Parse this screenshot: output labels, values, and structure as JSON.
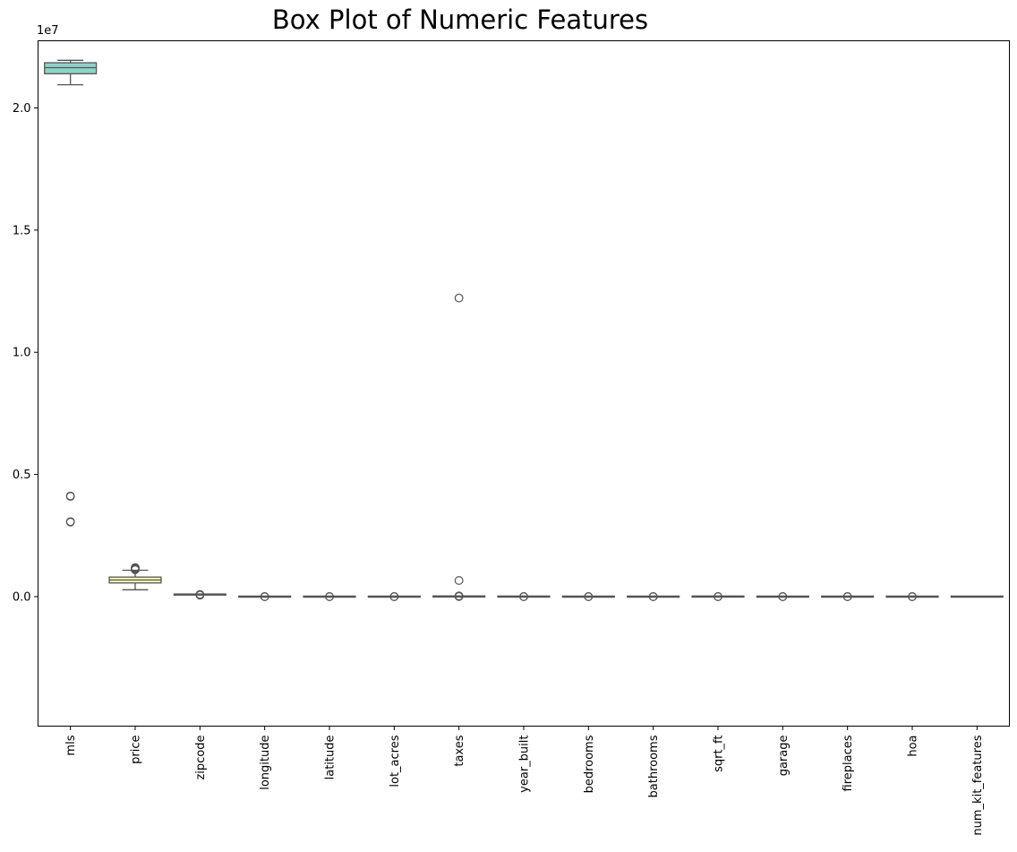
{
  "chart_data": {
    "type": "box",
    "title": "Box Plot of Numeric Features",
    "xlabel": "",
    "ylabel": "",
    "y_offset_label": "1e7",
    "y_scale": 10000000,
    "ylim": [
      -5300000,
      22750000
    ],
    "yticks": [
      0,
      5000000,
      10000000,
      15000000,
      20000000
    ],
    "ytick_labels": [
      "0.0",
      "0.5",
      "1.0",
      "1.5",
      "2.0"
    ],
    "grid": false,
    "legend": "none",
    "categories": [
      "mls",
      "price",
      "zipcode",
      "longitude",
      "latitude",
      "lot_acres",
      "taxes",
      "year_built",
      "bedrooms",
      "bathrooms",
      "sqrt_ft",
      "garage",
      "fireplaces",
      "hoa",
      "num_kit_features"
    ],
    "colors": [
      "#8dd3c7",
      "#ffffb3",
      "#bebada",
      "#fb8072",
      "#80b1d3",
      "#fdb462",
      "#b3de69",
      "#fccde5",
      "#d9d9d9",
      "#bc80bd",
      "#ccebc5",
      "#ffed6f",
      "#8dd3c7",
      "#ffffb3",
      "#bebada"
    ],
    "boxes": [
      {
        "name": "mls",
        "whisker_low": 20950000,
        "q1": 21400000,
        "median": 21650000,
        "q3": 21850000,
        "whisker_high": 21950000,
        "outliers": [
          4100000,
          4120000,
          3050000,
          3070000
        ]
      },
      {
        "name": "price",
        "whisker_low": 280000,
        "q1": 560000,
        "median": 680000,
        "q3": 800000,
        "whisker_high": 1080000,
        "outliers": [
          1100000,
          1130000,
          1160000,
          1190000
        ]
      },
      {
        "name": "zipcode",
        "whisker_low": 85000,
        "q1": 85500,
        "median": 85700,
        "q3": 85900,
        "whisker_high": 86000,
        "outliers": [
          60000,
          90000
        ]
      },
      {
        "name": "longitude",
        "whisker_low": -112,
        "q1": -111,
        "median": -111,
        "q3": -110,
        "whisker_high": -110,
        "outliers": [
          -150,
          150
        ]
      },
      {
        "name": "latitude",
        "whisker_low": 31,
        "q1": 32,
        "median": 32,
        "q3": 32,
        "whisker_high": 33,
        "outliers": [
          -150,
          150
        ]
      },
      {
        "name": "lot_acres",
        "whisker_low": 0,
        "q1": 1,
        "median": 1,
        "q3": 2,
        "whisker_high": 3,
        "outliers": [
          -150,
          150
        ]
      },
      {
        "name": "taxes",
        "whisker_low": 0,
        "q1": 4800,
        "median": 6300,
        "q3": 8700,
        "whisker_high": 14500,
        "outliers": [
          12220000,
          660000,
          30000,
          5000
        ]
      },
      {
        "name": "year_built",
        "whisker_low": 1990,
        "q1": 1998,
        "median": 2004,
        "q3": 2008,
        "whisker_high": 2018,
        "outliers": [
          -150,
          150
        ]
      },
      {
        "name": "bedrooms",
        "whisker_low": 2,
        "q1": 3,
        "median": 4,
        "q3": 4,
        "whisker_high": 5,
        "outliers": [
          -150,
          150
        ]
      },
      {
        "name": "bathrooms",
        "whisker_low": 2,
        "q1": 3,
        "median": 4,
        "q3": 4,
        "whisker_high": 6,
        "outliers": [
          -150,
          150
        ]
      },
      {
        "name": "sqrt_ft",
        "whisker_low": 1000,
        "q1": 3000,
        "median": 3500,
        "q3": 4200,
        "whisker_high": 6000,
        "outliers": [
          -150,
          150
        ]
      },
      {
        "name": "garage",
        "whisker_low": 1,
        "q1": 2,
        "median": 3,
        "q3": 3,
        "whisker_high": 4,
        "outliers": [
          -150,
          150
        ]
      },
      {
        "name": "fireplaces",
        "whisker_low": 0,
        "q1": 1,
        "median": 2,
        "q3": 3,
        "whisker_high": 5,
        "outliers": [
          -150,
          150
        ]
      },
      {
        "name": "hoa",
        "whisker_low": 0,
        "q1": 0,
        "median": 60,
        "q3": 200,
        "whisker_high": 500,
        "outliers": [
          -150,
          150
        ]
      },
      {
        "name": "num_kit_features",
        "whisker_low": 2,
        "q1": 3,
        "median": 4,
        "q3": 5,
        "whisker_high": 6,
        "outliers": []
      }
    ]
  }
}
